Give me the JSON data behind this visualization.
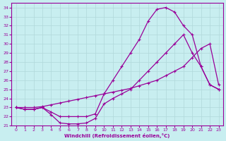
{
  "xlabel": "Windchill (Refroidissement éolien,°C)",
  "ylabel": "",
  "background_color": "#c8eef0",
  "grid_color": "#b0d8da",
  "line_color": "#990099",
  "xlim": [
    -0.5,
    23.5
  ],
  "ylim": [
    21,
    34.5
  ],
  "xticks": [
    0,
    1,
    2,
    3,
    4,
    5,
    6,
    7,
    8,
    9,
    10,
    11,
    12,
    13,
    14,
    15,
    16,
    17,
    18,
    19,
    20,
    21,
    22,
    23
  ],
  "yticks": [
    21,
    22,
    23,
    24,
    25,
    26,
    27,
    28,
    29,
    30,
    31,
    32,
    33,
    34
  ],
  "curve1_x": [
    0,
    1,
    2,
    3,
    4,
    5,
    6,
    7,
    8,
    9,
    10,
    11,
    12,
    13,
    14,
    15,
    16,
    17,
    18,
    19,
    20,
    21,
    22,
    23
  ],
  "curve1_y": [
    23.0,
    22.8,
    22.8,
    23.0,
    22.2,
    21.3,
    21.2,
    21.2,
    21.3,
    21.8,
    23.4,
    24.0,
    24.5,
    25.0,
    26.0,
    27.0,
    28.0,
    29.0,
    30.0,
    31.0,
    29.0,
    27.5,
    25.5,
    25.0
  ],
  "curve2_x": [
    0,
    1,
    2,
    3,
    4,
    5,
    6,
    7,
    8,
    9,
    10,
    11,
    12,
    13,
    14,
    15,
    16,
    17,
    18,
    19,
    20,
    21,
    22,
    23
  ],
  "curve2_y": [
    23.0,
    22.8,
    22.8,
    23.0,
    22.5,
    22.0,
    22.0,
    22.0,
    22.0,
    22.3,
    24.5,
    26.0,
    27.5,
    29.0,
    30.5,
    32.5,
    33.8,
    34.0,
    33.5,
    32.0,
    31.0,
    27.5,
    25.5,
    25.0
  ],
  "curve3_x": [
    0,
    1,
    2,
    3,
    4,
    5,
    6,
    7,
    8,
    9,
    10,
    11,
    12,
    13,
    14,
    15,
    16,
    17,
    18,
    19,
    20,
    21,
    22,
    23
  ],
  "curve3_y": [
    23.0,
    23.0,
    23.0,
    23.1,
    23.3,
    23.5,
    23.7,
    23.9,
    24.1,
    24.3,
    24.5,
    24.7,
    24.9,
    25.1,
    25.4,
    25.7,
    26.0,
    26.5,
    27.0,
    27.5,
    28.5,
    29.5,
    30.0,
    25.5
  ]
}
